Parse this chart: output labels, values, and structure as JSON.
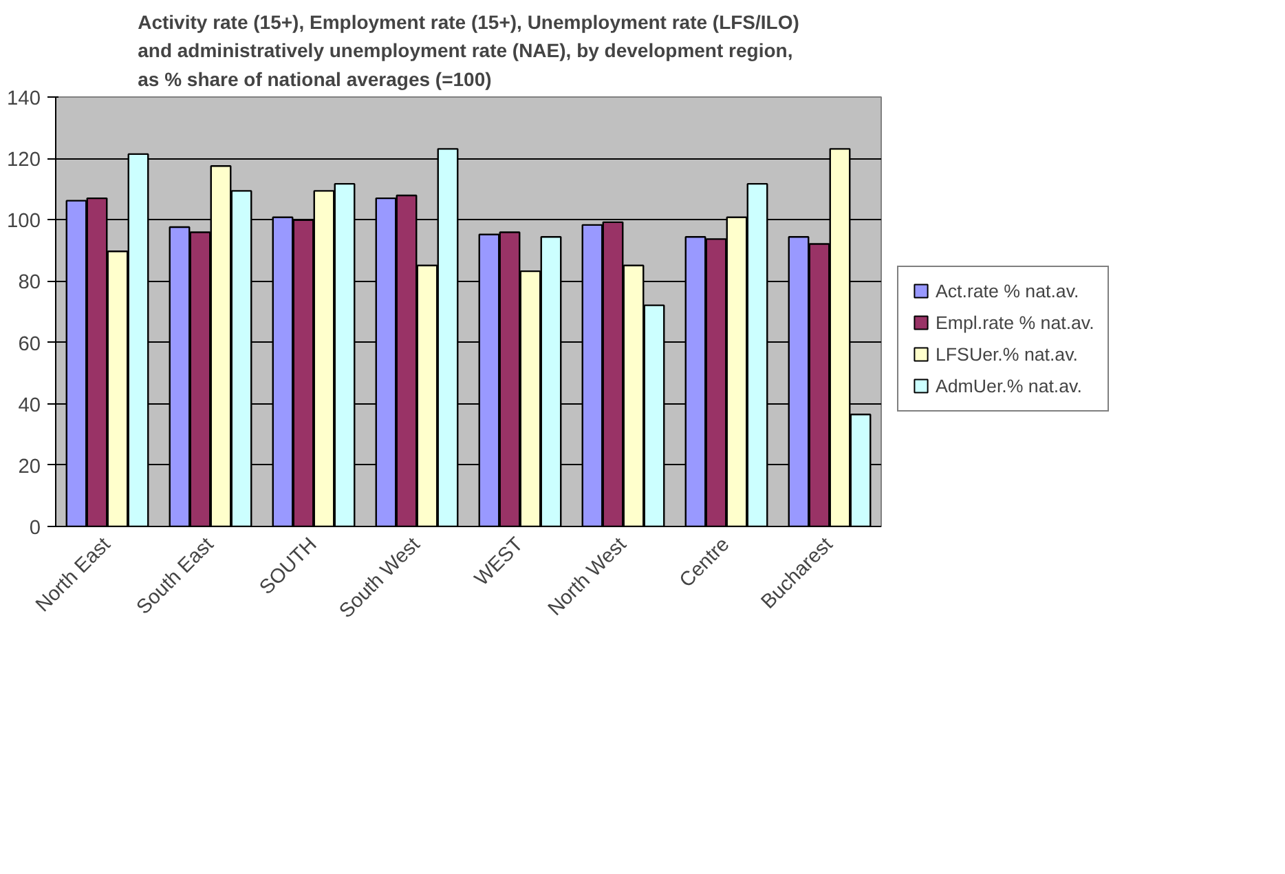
{
  "chart_data": {
    "type": "bar",
    "title": "Activity rate (15+), Employment rate (15+), Unemployment rate (LFS/ILO)\nand administratively unemployment rate (NAE),  by development region,\nas % share of national averages (=100)",
    "categories": [
      "North East",
      "South East",
      "SOUTH",
      "South West",
      "WEST",
      "North West",
      "Centre",
      "Bucharest"
    ],
    "series": [
      {
        "name": "Act.rate % nat.av.",
        "color": "#9999ff",
        "values": [
          106.2,
          97.6,
          100.8,
          107,
          95.2,
          98.3,
          94.4,
          94.4
        ]
      },
      {
        "name": "Empl.rate % nat.av.",
        "color": "#993366",
        "values": [
          107,
          95.9,
          99.9,
          107.9,
          95.9,
          99.2,
          93.7,
          92.1
        ]
      },
      {
        "name": "LFSUer.% nat.av.",
        "color": "#ffffcc",
        "values": [
          89.7,
          117.5,
          109.4,
          85.1,
          83.2,
          85.1,
          100.8,
          123.1
        ]
      },
      {
        "name": "AdmUer.% nat.av.",
        "color": "#ccffff",
        "values": [
          121.4,
          109.4,
          111.7,
          123.1,
          94.4,
          72.1,
          111.7,
          36.5
        ]
      }
    ],
    "ylim": [
      0,
      140
    ],
    "yticks": [
      0,
      20,
      40,
      60,
      80,
      100,
      120,
      140
    ],
    "grid": "y",
    "legend": "right"
  }
}
